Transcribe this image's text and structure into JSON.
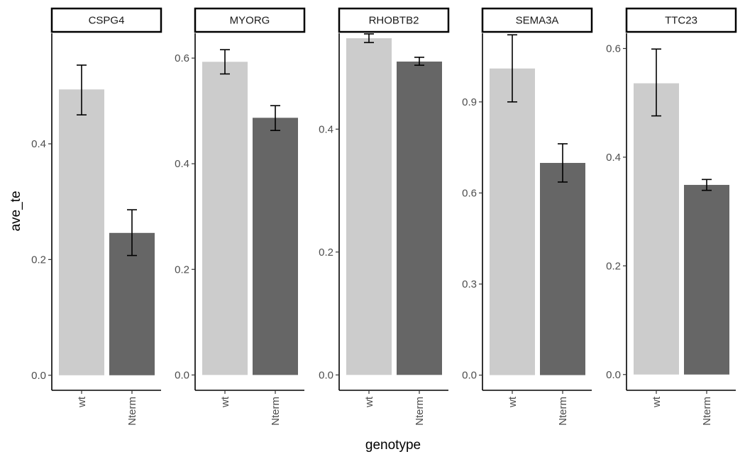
{
  "chart_data": {
    "type": "bar",
    "xlabel": "genotype",
    "ylabel": "ave_te",
    "categories": [
      "wt",
      "Nterm"
    ],
    "colors": {
      "wt": "#cccccc",
      "Nterm": "#666666"
    },
    "facets": [
      {
        "name": "CSPG4",
        "yticks": [
          0.0,
          0.2,
          0.4
        ],
        "ytick_labels": [
          "0.0",
          "0.2",
          "0.4"
        ],
        "ylim": [
          -0.026,
          0.591
        ],
        "bars": [
          {
            "category": "wt",
            "value": 0.494,
            "err_low": 0.45,
            "err_high": 0.536
          },
          {
            "category": "Nterm",
            "value": 0.246,
            "err_low": 0.207,
            "err_high": 0.286
          }
        ]
      },
      {
        "name": "MYORG",
        "yticks": [
          0.0,
          0.2,
          0.4,
          0.6
        ],
        "ytick_labels": [
          "0.0",
          "0.2",
          "0.4",
          "0.6"
        ],
        "ylim": [
          -0.029,
          0.647
        ],
        "bars": [
          {
            "category": "wt",
            "value": 0.593,
            "err_low": 0.57,
            "err_high": 0.616
          },
          {
            "category": "Nterm",
            "value": 0.487,
            "err_low": 0.463,
            "err_high": 0.51
          }
        ]
      },
      {
        "name": "RHOBTB2",
        "yticks": [
          0.0,
          0.2,
          0.4
        ],
        "ytick_labels": [
          "0.0",
          "0.2",
          "0.4"
        ],
        "ylim": [
          -0.025,
          0.556
        ],
        "bars": [
          {
            "category": "wt",
            "value": 0.548,
            "err_low": 0.541,
            "err_high": 0.555
          },
          {
            "category": "Nterm",
            "value": 0.51,
            "err_low": 0.504,
            "err_high": 0.517
          }
        ]
      },
      {
        "name": "SEMA3A",
        "yticks": [
          0.0,
          0.3,
          0.6,
          0.9
        ],
        "ytick_labels": [
          "0.0",
          "0.3",
          "0.6",
          "0.9"
        ],
        "ylim": [
          -0.05,
          1.126
        ],
        "bars": [
          {
            "category": "wt",
            "value": 1.01,
            "err_low": 0.9,
            "err_high": 1.121
          },
          {
            "category": "Nterm",
            "value": 0.699,
            "err_low": 0.636,
            "err_high": 0.762
          }
        ]
      },
      {
        "name": "TTC23",
        "yticks": [
          0.0,
          0.2,
          0.4,
          0.6
        ],
        "ytick_labels": [
          "0.0",
          "0.2",
          "0.4",
          "0.6"
        ],
        "ylim": [
          -0.029,
          0.628
        ],
        "bars": [
          {
            "category": "wt",
            "value": 0.536,
            "err_low": 0.476,
            "err_high": 0.599
          },
          {
            "category": "Nterm",
            "value": 0.349,
            "err_low": 0.339,
            "err_high": 0.359
          }
        ]
      }
    ],
    "grid": false,
    "legend": "none"
  }
}
